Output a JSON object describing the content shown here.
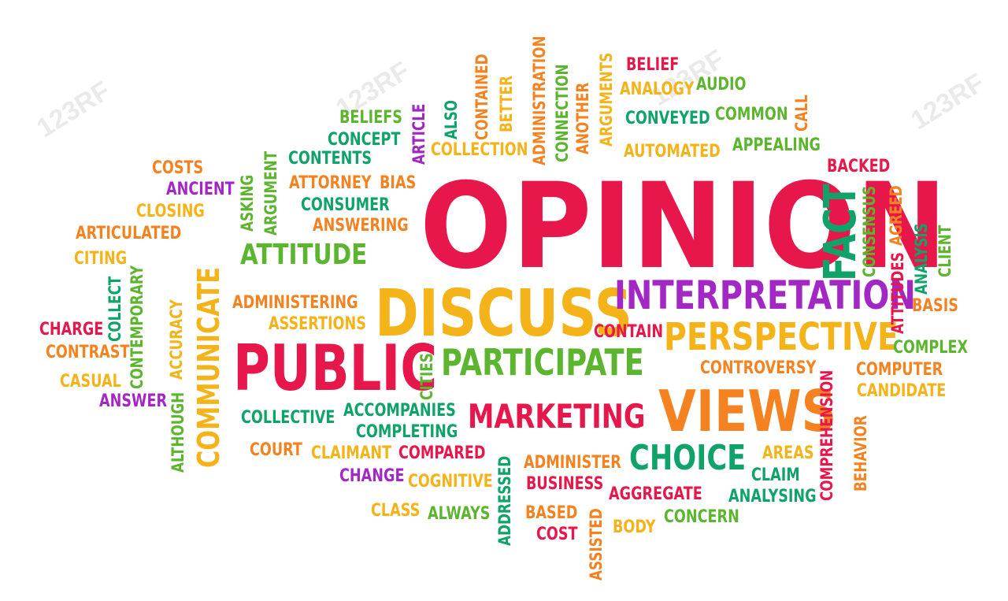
{
  "colors": {
    "red": "#e8174b",
    "orange": "#f58220",
    "yellow": "#f5b31a",
    "green": "#5cb52e",
    "teal": "#0fa36a",
    "purple": "#a227c4"
  },
  "watermark": "123RF",
  "words": [
    {
      "t": "OPINION",
      "c": "red"
    },
    {
      "t": "DISCUSS",
      "c": "yellow"
    },
    {
      "t": "PUBLIC",
      "c": "red"
    },
    {
      "t": "INTERPRETATION",
      "c": "purple"
    },
    {
      "t": "PERSPECTIVE",
      "c": "yellow"
    },
    {
      "t": "VIEWS",
      "c": "orange"
    },
    {
      "t": "PARTICIPATE",
      "c": "green"
    },
    {
      "t": "MARKETING",
      "c": "red"
    },
    {
      "t": "CHOICE",
      "c": "teal"
    },
    {
      "t": "ATTITUDE",
      "c": "green"
    },
    {
      "t": "FACT",
      "c": "teal"
    },
    {
      "t": "COMMUNICATE",
      "c": "yellow"
    },
    {
      "t": "ADMINISTRATION",
      "c": "orange"
    },
    {
      "t": "CONNECTION",
      "c": "green"
    },
    {
      "t": "ANOTHER",
      "c": "orange"
    },
    {
      "t": "ARGUMENTS",
      "c": "yellow"
    },
    {
      "t": "CONTAINED",
      "c": "orange"
    },
    {
      "t": "BETTER",
      "c": "yellow"
    },
    {
      "t": "ALSO",
      "c": "teal"
    },
    {
      "t": "ARTICLE",
      "c": "purple"
    },
    {
      "t": "BELIEF",
      "c": "red"
    },
    {
      "t": "ANALOGY",
      "c": "yellow"
    },
    {
      "t": "AUDIO",
      "c": "green"
    },
    {
      "t": "CONVEYED",
      "c": "teal"
    },
    {
      "t": "COMMON",
      "c": "green"
    },
    {
      "t": "CALL",
      "c": "orange"
    },
    {
      "t": "BELIEFS",
      "c": "green"
    },
    {
      "t": "CONCEPT",
      "c": "teal"
    },
    {
      "t": "COLLECTION",
      "c": "yellow"
    },
    {
      "t": "AUTOMATED",
      "c": "yellow"
    },
    {
      "t": "APPEALING",
      "c": "green"
    },
    {
      "t": "CONTENTS",
      "c": "teal"
    },
    {
      "t": "ARGUMENT",
      "c": "green"
    },
    {
      "t": "ASKING",
      "c": "green"
    },
    {
      "t": "ATTORNEY",
      "c": "orange"
    },
    {
      "t": "BIAS",
      "c": "orange"
    },
    {
      "t": "CONSUMER",
      "c": "teal"
    },
    {
      "t": "ANSWERING",
      "c": "orange"
    },
    {
      "t": "BACKED",
      "c": "red"
    },
    {
      "t": "COSTS",
      "c": "orange"
    },
    {
      "t": "ANCIENT",
      "c": "purple"
    },
    {
      "t": "CLOSING",
      "c": "yellow"
    },
    {
      "t": "ARTICULATED",
      "c": "orange"
    },
    {
      "t": "CITING",
      "c": "yellow"
    },
    {
      "t": "CONTEMPORARY",
      "c": "green"
    },
    {
      "t": "COLLECT",
      "c": "teal"
    },
    {
      "t": "CONSENSUS",
      "c": "green"
    },
    {
      "t": "AGREED",
      "c": "orange"
    },
    {
      "t": "ATTITUDES",
      "c": "red"
    },
    {
      "t": "ANALYSIS",
      "c": "teal"
    },
    {
      "t": "CLIENT",
      "c": "green"
    },
    {
      "t": "BASIS",
      "c": "orange"
    },
    {
      "t": "ADMINISTERING",
      "c": "orange"
    },
    {
      "t": "ASSERTIONS",
      "c": "yellow"
    },
    {
      "t": "ACCURACY",
      "c": "yellow"
    },
    {
      "t": "CHARGE",
      "c": "red"
    },
    {
      "t": "CONTRAST",
      "c": "orange"
    },
    {
      "t": "CASUAL",
      "c": "yellow"
    },
    {
      "t": "ANSWER",
      "c": "purple"
    },
    {
      "t": "ALTHOUGH",
      "c": "green"
    },
    {
      "t": "CITIES",
      "c": "green"
    },
    {
      "t": "CONTAIN",
      "c": "red"
    },
    {
      "t": "COMPLEX",
      "c": "green"
    },
    {
      "t": "CONTROVERSY",
      "c": "orange"
    },
    {
      "t": "COMPUTER",
      "c": "orange"
    },
    {
      "t": "CANDIDATE",
      "c": "yellow"
    },
    {
      "t": "COMPREHENSION",
      "c": "red"
    },
    {
      "t": "BEHAVIOR",
      "c": "orange"
    },
    {
      "t": "COLLECTIVE",
      "c": "teal"
    },
    {
      "t": "ACCOMPANIES",
      "c": "teal"
    },
    {
      "t": "COMPLETING",
      "c": "teal"
    },
    {
      "t": "COURT",
      "c": "orange"
    },
    {
      "t": "CLAIMANT",
      "c": "yellow"
    },
    {
      "t": "COMPARED",
      "c": "red"
    },
    {
      "t": "CHANGE",
      "c": "purple"
    },
    {
      "t": "COGNITIVE",
      "c": "yellow"
    },
    {
      "t": "ADDRESSED",
      "c": "teal"
    },
    {
      "t": "ADMINISTER",
      "c": "orange"
    },
    {
      "t": "BUSINESS",
      "c": "red"
    },
    {
      "t": "AGGREGATE",
      "c": "red"
    },
    {
      "t": "AREAS",
      "c": "yellow"
    },
    {
      "t": "CLAIM",
      "c": "teal"
    },
    {
      "t": "ANALYSING",
      "c": "teal"
    },
    {
      "t": "CLASS",
      "c": "yellow"
    },
    {
      "t": "ALWAYS",
      "c": "green"
    },
    {
      "t": "BASED",
      "c": "orange"
    },
    {
      "t": "COST",
      "c": "red"
    },
    {
      "t": "ASSISTED",
      "c": "orange"
    },
    {
      "t": "BODY",
      "c": "yellow"
    },
    {
      "t": "CONCERN",
      "c": "green"
    }
  ]
}
